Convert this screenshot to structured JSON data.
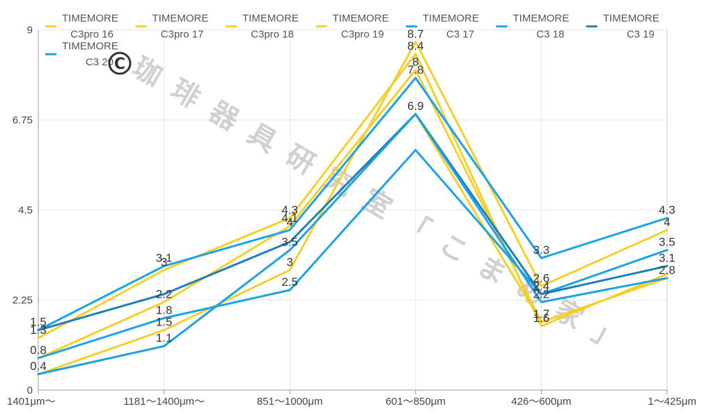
{
  "chart_data": {
    "type": "line",
    "categories": [
      "1401μm〜",
      "1181〜1400μm〜",
      "851〜1000μm",
      "601〜850μm",
      "426〜600μm",
      "1〜425μm"
    ],
    "ylim": [
      0,
      9
    ],
    "yticks": [
      "0",
      "2.25",
      "4.5",
      "6.75",
      "9"
    ],
    "grid": true,
    "legend_position": "top",
    "series": [
      {
        "name": "TIMEMORE C3pro 16",
        "color": "#f5cf2a",
        "values": [
          1.3,
          3.0,
          4.3,
          8.4,
          1.6,
          2.9
        ]
      },
      {
        "name": "TIMEMORE C3pro 17",
        "color": "#f5cf2a",
        "values": [
          0.8,
          2.2,
          4.1,
          8.0,
          1.7,
          2.8
        ]
      },
      {
        "name": "TIMEMORE C3pro 18",
        "color": "#f5cf2a",
        "values": [
          0.4,
          1.5,
          3.0,
          8.7,
          2.6,
          4.0
        ]
      },
      {
        "name": "TIMEMORE C3pro 19",
        "color": "#f5cf2a",
        "values": [
          0.4,
          1.1,
          3.5,
          6.9,
          1.7,
          2.8
        ]
      },
      {
        "name": "TIMEMORE C3 17",
        "color": "#1aa3e8",
        "values": [
          1.5,
          3.1,
          4.0,
          7.8,
          3.3,
          4.3
        ]
      },
      {
        "name": "TIMEMORE C3 18",
        "color": "#1aa3e8",
        "values": [
          0.8,
          1.8,
          2.5,
          6.0,
          2.4,
          3.5
        ]
      },
      {
        "name": "TIMEMORE C3 19",
        "color": "#1e7fb8",
        "values": [
          1.5,
          2.4,
          3.7,
          6.9,
          2.4,
          3.1
        ]
      },
      {
        "name": "TIMEMORE C3 20",
        "color": "#1aa3e8",
        "values": [
          0.4,
          1.1,
          3.5,
          6.9,
          2.2,
          2.8
        ]
      }
    ],
    "data_labels": [
      {
        "x": 0,
        "y": 1.5,
        "text": "1.5"
      },
      {
        "x": 0,
        "y": 1.3,
        "text": "1.3"
      },
      {
        "x": 0,
        "y": 0.8,
        "text": "0.8"
      },
      {
        "x": 0,
        "y": 0.4,
        "text": "0.4"
      },
      {
        "x": 1,
        "y": 3.1,
        "text": "3.1"
      },
      {
        "x": 1,
        "y": 3.0,
        "text": "3"
      },
      {
        "x": 1,
        "y": 2.2,
        "text": "2.2"
      },
      {
        "x": 1,
        "y": 1.8,
        "text": "1.8"
      },
      {
        "x": 1,
        "y": 1.5,
        "text": "1.5"
      },
      {
        "x": 1,
        "y": 1.1,
        "text": "1.1"
      },
      {
        "x": 2,
        "y": 4.3,
        "text": "4.3"
      },
      {
        "x": 2,
        "y": 4.1,
        "text": "4.1"
      },
      {
        "x": 2,
        "y": 4.0,
        "text": "4"
      },
      {
        "x": 2,
        "y": 3.5,
        "text": "3.5"
      },
      {
        "x": 2,
        "y": 3.0,
        "text": "3"
      },
      {
        "x": 2,
        "y": 2.5,
        "text": "2.5"
      },
      {
        "x": 3,
        "y": 8.7,
        "text": "8.7"
      },
      {
        "x": 3,
        "y": 8.4,
        "text": "8.4"
      },
      {
        "x": 3,
        "y": 7.8,
        "text": "7.8"
      },
      {
        "x": 3,
        "y": 8.0,
        "text": "8"
      },
      {
        "x": 3,
        "y": 6.9,
        "text": "6.9"
      },
      {
        "x": 4,
        "y": 3.3,
        "text": "3.3"
      },
      {
        "x": 4,
        "y": 2.6,
        "text": "2.6"
      },
      {
        "x": 4,
        "y": 2.4,
        "text": "2.4"
      },
      {
        "x": 4,
        "y": 2.2,
        "text": "2.2"
      },
      {
        "x": 4,
        "y": 1.7,
        "text": "1.7"
      },
      {
        "x": 4,
        "y": 1.6,
        "text": "1.6"
      },
      {
        "x": 5,
        "y": 4.3,
        "text": "4.3"
      },
      {
        "x": 5,
        "y": 4.0,
        "text": "4"
      },
      {
        "x": 5,
        "y": 3.5,
        "text": "3.5"
      },
      {
        "x": 5,
        "y": 3.1,
        "text": "3.1"
      },
      {
        "x": 5,
        "y": 2.8,
        "text": "2.8"
      }
    ],
    "watermark": "珈琲器具研究室「こまめ家」",
    "copyright_symbol": "©"
  }
}
